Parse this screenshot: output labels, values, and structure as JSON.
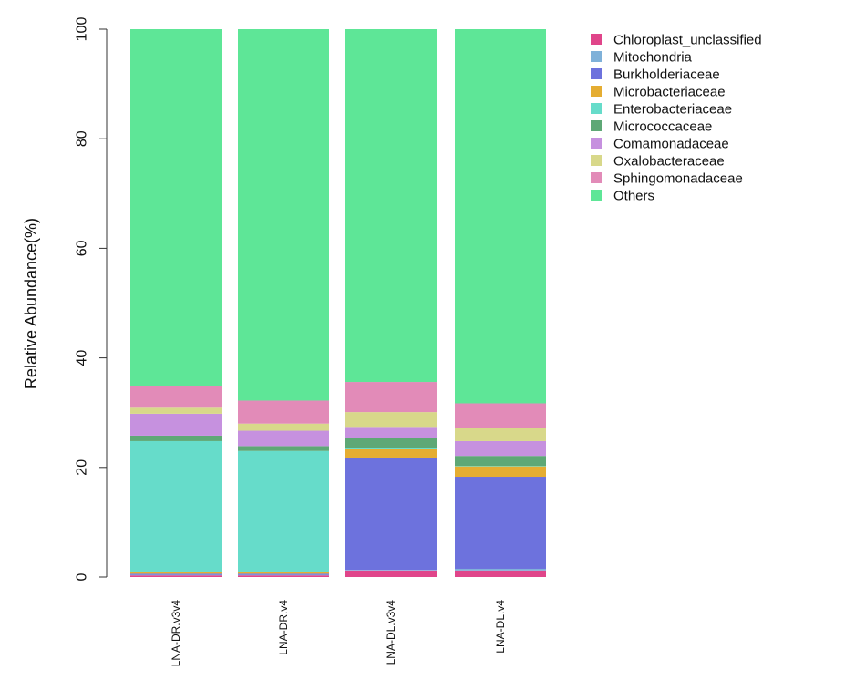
{
  "chart_data": {
    "type": "bar",
    "stacked": true,
    "title": "",
    "xlabel": "",
    "ylabel": "Relative Abundance(%)",
    "ylim": [
      0,
      100
    ],
    "yticks": [
      0,
      20,
      40,
      60,
      80,
      100
    ],
    "grid": false,
    "legend_position": "top-right",
    "categories": [
      "LNA-DR.v3v4",
      "LNA-DR.v4",
      "LNA-DL.v3v4",
      "LNA-DL.v4"
    ],
    "series": [
      {
        "name": "Chloroplast_unclassified",
        "color": "#e0458a",
        "values": [
          0.3,
          0.3,
          1.2,
          1.2
        ]
      },
      {
        "name": "Mitochondria",
        "color": "#7fb1d9",
        "values": [
          0.1,
          0.1,
          0.1,
          0.3
        ]
      },
      {
        "name": "Burkholderiaceae",
        "color": "#6d72dd",
        "values": [
          0.2,
          0.2,
          20.5,
          16.8
        ]
      },
      {
        "name": "Microbacteriaceae",
        "color": "#e5ad32",
        "values": [
          0.4,
          0.4,
          1.5,
          1.9
        ]
      },
      {
        "name": "Enterobacteriaceae",
        "color": "#66dcca",
        "values": [
          23.8,
          22.0,
          0.3,
          0.1
        ]
      },
      {
        "name": "Micrococcaceae",
        "color": "#5ea876",
        "values": [
          1.0,
          0.9,
          1.8,
          1.8
        ]
      },
      {
        "name": "Comamonadaceae",
        "color": "#c691df",
        "values": [
          4.0,
          2.8,
          2.0,
          2.7
        ]
      },
      {
        "name": "Oxalobacteraceae",
        "color": "#d8d88a",
        "values": [
          1.1,
          1.3,
          2.7,
          2.4
        ]
      },
      {
        "name": "Sphingomonadaceae",
        "color": "#e28bb8",
        "values": [
          4.0,
          4.2,
          5.5,
          4.5
        ]
      },
      {
        "name": "Others",
        "color": "#5ee697",
        "values": [
          65.1,
          67.8,
          64.4,
          68.3
        ]
      }
    ]
  }
}
